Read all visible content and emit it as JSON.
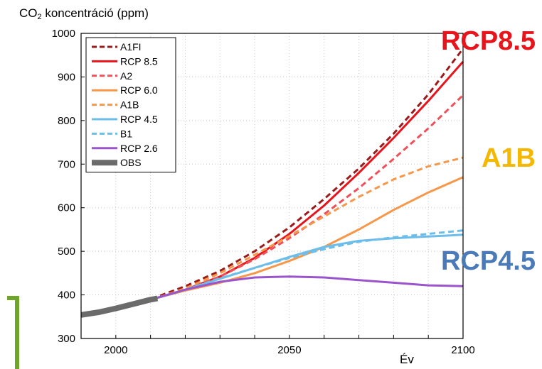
{
  "chart_data": {
    "type": "line",
    "ylabel_prefix": "CO",
    "ylabel_sub": "2",
    "ylabel_rest": " koncentráció (ppm)",
    "xlabel": "Év",
    "xlim": [
      1990,
      2100
    ],
    "ylim": [
      300,
      1000
    ],
    "xticks": [
      2000,
      2050,
      2100
    ],
    "yticks": [
      300,
      400,
      500,
      600,
      700,
      800,
      900,
      1000
    ],
    "grid": true,
    "legend_position": "top-left",
    "series": [
      {
        "name": "A1FI",
        "color": "#9b1b1b",
        "style": "dashed",
        "width": 3,
        "x": [
          2000,
          2010,
          2020,
          2030,
          2040,
          2050,
          2060,
          2070,
          2080,
          2090,
          2100
        ],
        "y": [
          368,
          390,
          420,
          455,
          500,
          555,
          620,
          690,
          770,
          860,
          965
        ]
      },
      {
        "name": "RCP 8.5",
        "color": "#e8141c",
        "style": "solid",
        "width": 3,
        "x": [
          2000,
          2010,
          2020,
          2030,
          2040,
          2050,
          2060,
          2070,
          2080,
          2090,
          2100
        ],
        "y": [
          368,
          389,
          412,
          442,
          485,
          540,
          605,
          680,
          760,
          845,
          935
        ]
      },
      {
        "name": "A2",
        "color": "#f0505a",
        "style": "dashed",
        "width": 3,
        "x": [
          2000,
          2010,
          2020,
          2030,
          2040,
          2050,
          2060,
          2070,
          2080,
          2090,
          2100
        ],
        "y": [
          368,
          388,
          413,
          442,
          482,
          530,
          585,
          645,
          712,
          782,
          858
        ]
      },
      {
        "name": "RCP 6.0",
        "color": "#f6974a",
        "style": "solid",
        "width": 3,
        "x": [
          2000,
          2010,
          2020,
          2030,
          2040,
          2050,
          2060,
          2070,
          2080,
          2090,
          2100
        ],
        "y": [
          368,
          389,
          410,
          428,
          450,
          478,
          510,
          550,
          595,
          635,
          670
        ]
      },
      {
        "name": "A1B",
        "color": "#f6974a",
        "style": "dashed",
        "width": 3,
        "x": [
          2000,
          2010,
          2020,
          2030,
          2040,
          2050,
          2060,
          2070,
          2080,
          2090,
          2100
        ],
        "y": [
          368,
          388,
          415,
          450,
          492,
          535,
          580,
          625,
          665,
          695,
          715
        ]
      },
      {
        "name": "RCP 4.5",
        "color": "#6cbde9",
        "style": "solid",
        "width": 3,
        "x": [
          2000,
          2010,
          2020,
          2030,
          2040,
          2050,
          2060,
          2070,
          2080,
          2090,
          2100
        ],
        "y": [
          368,
          389,
          412,
          437,
          462,
          487,
          510,
          524,
          530,
          534,
          538
        ]
      },
      {
        "name": "B1",
        "color": "#6cbde9",
        "style": "dashed",
        "width": 3,
        "x": [
          2000,
          2010,
          2020,
          2030,
          2040,
          2050,
          2060,
          2070,
          2080,
          2090,
          2100
        ],
        "y": [
          368,
          388,
          412,
          438,
          462,
          485,
          505,
          522,
          532,
          540,
          548
        ]
      },
      {
        "name": "RCP 2.6",
        "color": "#9b55cc",
        "style": "solid",
        "width": 3,
        "x": [
          2000,
          2010,
          2020,
          2030,
          2040,
          2050,
          2060,
          2070,
          2080,
          2090,
          2100
        ],
        "y": [
          368,
          389,
          412,
          430,
          440,
          442,
          440,
          434,
          428,
          422,
          420
        ]
      },
      {
        "name": "OBS",
        "color": "#6b6b6b",
        "style": "solid",
        "width": 8,
        "x": [
          1990,
          1995,
          2000,
          2005,
          2010,
          2012
        ],
        "y": [
          354,
          360,
          369,
          379,
          389,
          392
        ]
      }
    ],
    "annotations": [
      {
        "text": "RCP8.5",
        "color": "#e8141c",
        "near_year": 2100,
        "near_value": 950
      },
      {
        "text": "A1B",
        "color": "#f5b800",
        "near_year": 2100,
        "near_value": 715
      },
      {
        "text": "RCP4.5",
        "color": "#4a7ab8",
        "near_year": 2100,
        "near_value": 485
      }
    ]
  },
  "decor": {
    "bracket_color": "#6fa52a"
  }
}
